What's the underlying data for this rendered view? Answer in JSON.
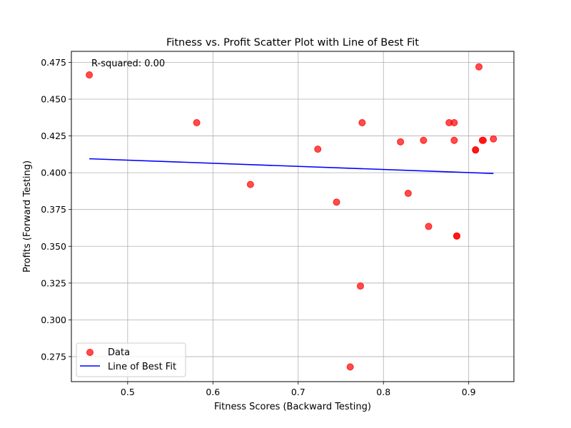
{
  "chart_data": {
    "type": "scatter",
    "title": "Fitness vs. Profit Scatter Plot with Line of Best Fit",
    "xlabel": "Fitness Scores (Backward Testing)",
    "ylabel": "Profits (Forward Testing)",
    "xlim": [
      0.434,
      0.953
    ],
    "ylim": [
      0.258,
      0.4825
    ],
    "xticks": [
      0.5,
      0.6,
      0.7,
      0.8,
      0.9
    ],
    "xtick_labels": [
      "0.5",
      "0.6",
      "0.7",
      "0.8",
      "0.9"
    ],
    "yticks": [
      0.275,
      0.3,
      0.325,
      0.35,
      0.375,
      0.4,
      0.425,
      0.45,
      0.475
    ],
    "ytick_labels": [
      "0.275",
      "0.300",
      "0.325",
      "0.350",
      "0.375",
      "0.400",
      "0.425",
      "0.450",
      "0.475"
    ],
    "grid": true,
    "legend_position": "bottom-left",
    "annotation": "R-squared: 0.00",
    "colors": {
      "points": "#ff0000",
      "line": "#0000ff",
      "grid": "#b0b0b0"
    },
    "series": [
      {
        "name": "Data",
        "kind": "scatter",
        "x": [
          0.455,
          0.581,
          0.644,
          0.723,
          0.745,
          0.761,
          0.773,
          0.775,
          0.82,
          0.829,
          0.847,
          0.853,
          0.877,
          0.883,
          0.883,
          0.886,
          0.886,
          0.908,
          0.908,
          0.912,
          0.916,
          0.917,
          0.929
        ],
        "y": [
          0.4665,
          0.434,
          0.392,
          0.416,
          0.38,
          0.268,
          0.323,
          0.434,
          0.421,
          0.386,
          0.422,
          0.3635,
          0.434,
          0.434,
          0.422,
          0.357,
          0.357,
          0.4155,
          0.4155,
          0.472,
          0.422,
          0.422,
          0.423
        ]
      },
      {
        "name": "Line of Best Fit",
        "kind": "line",
        "x": [
          0.455,
          0.929
        ],
        "y": [
          0.4095,
          0.3995
        ]
      }
    ]
  }
}
